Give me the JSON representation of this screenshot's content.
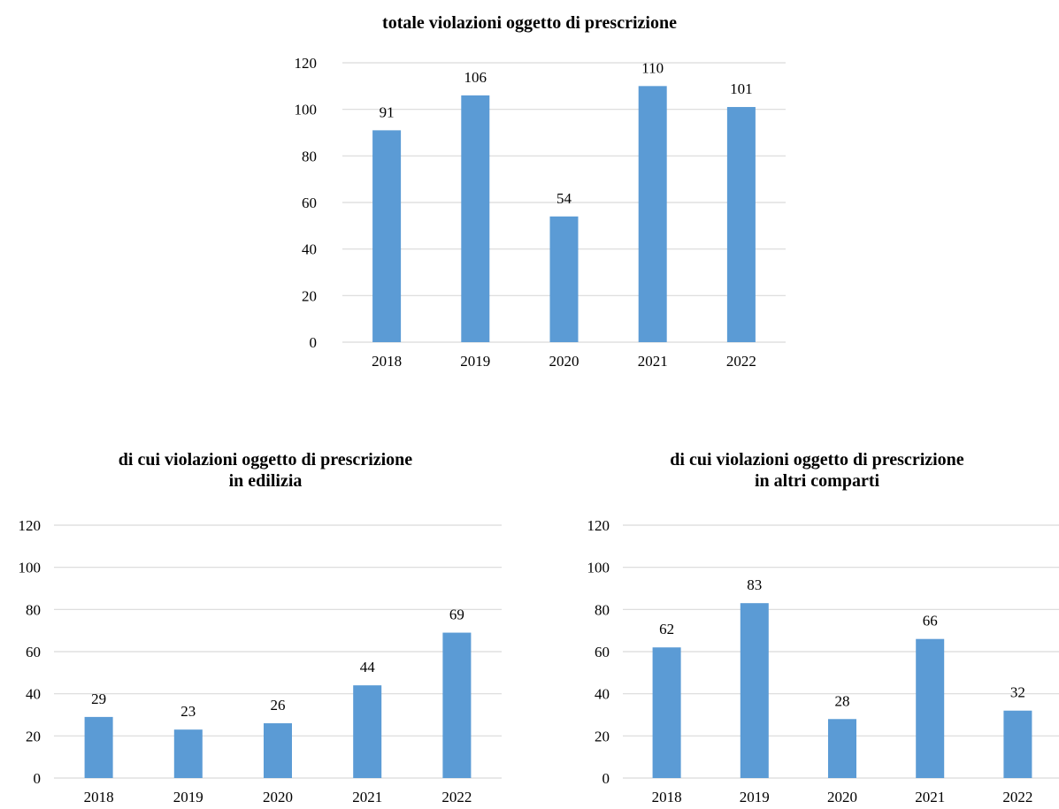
{
  "chart_data": [
    {
      "type": "bar",
      "title": "totale violazioni oggetto di prescrizione",
      "title_lines": [
        "totale violazioni oggetto di prescrizione"
      ],
      "categories": [
        "2018",
        "2019",
        "2020",
        "2021",
        "2022"
      ],
      "values": [
        91,
        106,
        54,
        110,
        101
      ],
      "ylim": [
        0,
        120
      ],
      "yticks": [
        0,
        20,
        40,
        60,
        80,
        100,
        120
      ],
      "xlabel": "",
      "ylabel": "",
      "grid": true,
      "data_labels": true,
      "bar_color": "#5B9BD5",
      "gridline_color": "#D9D9D9"
    },
    {
      "type": "bar",
      "title": "di cui violazioni oggetto di prescrizione in edilizia",
      "title_lines": [
        "di cui violazioni oggetto di prescrizione",
        "in edilizia"
      ],
      "categories": [
        "2018",
        "2019",
        "2020",
        "2021",
        "2022"
      ],
      "values": [
        29,
        23,
        26,
        44,
        69
      ],
      "ylim": [
        0,
        120
      ],
      "yticks": [
        0,
        20,
        40,
        60,
        80,
        100,
        120
      ],
      "xlabel": "",
      "ylabel": "",
      "grid": true,
      "data_labels": true,
      "bar_color": "#5B9BD5",
      "gridline_color": "#D9D9D9"
    },
    {
      "type": "bar",
      "title": "di cui violazioni oggetto di prescrizione in altri comparti",
      "title_lines": [
        "di cui violazioni oggetto di prescrizione",
        "in altri comparti"
      ],
      "categories": [
        "2018",
        "2019",
        "2020",
        "2021",
        "2022"
      ],
      "values": [
        62,
        83,
        28,
        66,
        32
      ],
      "ylim": [
        0,
        120
      ],
      "yticks": [
        0,
        20,
        40,
        60,
        80,
        100,
        120
      ],
      "xlabel": "",
      "ylabel": "",
      "grid": true,
      "data_labels": true,
      "bar_color": "#5B9BD5",
      "gridline_color": "#D9D9D9"
    }
  ]
}
